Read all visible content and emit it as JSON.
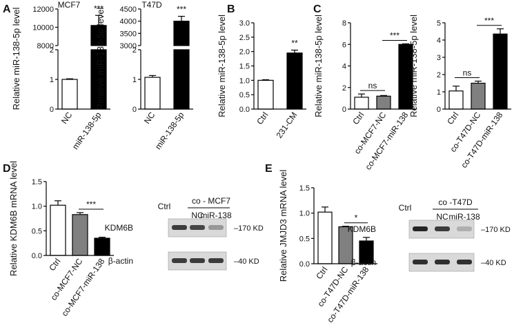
{
  "panels": [
    {
      "id": "A",
      "letter": "A",
      "charts": [
        {
          "type": "bar",
          "title": "MCF7",
          "ylabel": "Relative miR-138-5p level",
          "categories": [
            "NC",
            "miR-138-5p"
          ],
          "values": [
            1.0,
            10200
          ],
          "errors": [
            0.02,
            1100
          ],
          "fills": [
            "#ffffff",
            "#000000"
          ],
          "y_axis": "broken",
          "y_segments": [
            {
              "range": [
                0,
                2
              ],
              "ticks": [
                "0",
                "1",
                "2"
              ]
            },
            {
              "range": [
                8000,
                12000
              ],
              "ticks": [
                "8000",
                "10000",
                "12000"
              ]
            }
          ],
          "significance": [
            {
              "pair": [
                1,
                1
              ],
              "label": "***"
            }
          ]
        },
        {
          "type": "bar",
          "title": "T47D",
          "ylabel": "Relative miR-138-5p level",
          "categories": [
            "NC",
            "miR-138-5p"
          ],
          "values": [
            1.07,
            4000
          ],
          "errors": [
            0.06,
            200
          ],
          "fills": [
            "#ffffff",
            "#000000"
          ],
          "y_axis": "broken",
          "y_segments": [
            {
              "range": [
                0,
                2
              ],
              "ticks": [
                "0",
                "1",
                "2"
              ]
            },
            {
              "range": [
                3000,
                4500
              ],
              "ticks": [
                "3000",
                "3500",
                "4000",
                "4500"
              ]
            }
          ],
          "significance": [
            {
              "pair": [
                1,
                1
              ],
              "label": "***"
            }
          ]
        }
      ]
    },
    {
      "id": "B",
      "letter": "B",
      "charts": [
        {
          "type": "bar",
          "title": "",
          "ylabel": "Relative miR-138-5p level",
          "categories": [
            "Ctrl",
            "231-CM"
          ],
          "values": [
            1.0,
            1.95
          ],
          "errors": [
            0.02,
            0.1
          ],
          "fills": [
            "#ffffff",
            "#000000"
          ],
          "ylim": [
            0,
            3.0
          ],
          "ticks": [
            "0.0",
            "0.5",
            "1.0",
            "1.5",
            "2.0",
            "2.5",
            "3.0"
          ],
          "significance": [
            {
              "pair": [
                1,
                1
              ],
              "label": "**"
            }
          ]
        }
      ]
    },
    {
      "id": "C",
      "letter": "C",
      "charts": [
        {
          "type": "bar",
          "title": "",
          "ylabel": "Relative miR-138-5p level",
          "categories": [
            "Ctrl",
            "co-MCF7-NC",
            "co-MCF7-miR-138"
          ],
          "values": [
            1.1,
            1.2,
            6.0
          ],
          "errors": [
            0.3,
            0.06,
            0.05
          ],
          "fills": [
            "#ffffff",
            "#808080",
            "#000000"
          ],
          "ylim": [
            0,
            8
          ],
          "ticks": [
            "0",
            "2",
            "4",
            "6",
            "8"
          ],
          "significance": [
            {
              "pair": [
                0,
                1
              ],
              "label": "ns"
            },
            {
              "pair": [
                1,
                2
              ],
              "label": "***"
            }
          ]
        },
        {
          "type": "bar",
          "title": "",
          "ylabel": "Relative miR-138-5p level",
          "categories": [
            "Ctrl",
            "co-T47D-NC",
            "co-T47D-miR-138"
          ],
          "values": [
            1.05,
            1.5,
            4.35
          ],
          "errors": [
            0.28,
            0.12,
            0.3
          ],
          "fills": [
            "#ffffff",
            "#808080",
            "#000000"
          ],
          "ylim": [
            0,
            5
          ],
          "ticks": [
            "0",
            "1",
            "2",
            "3",
            "4",
            "5"
          ],
          "significance": [
            {
              "pair": [
                0,
                1
              ],
              "label": "ns"
            },
            {
              "pair": [
                1,
                2
              ],
              "label": "***"
            }
          ]
        }
      ]
    },
    {
      "id": "D",
      "letter": "D",
      "charts": [
        {
          "type": "bar",
          "title": "",
          "ylabel": "Relative KDM6B mRNA level",
          "categories": [
            "Ctrl",
            "co-MCF7-NC",
            "co-MCF7-miR-138"
          ],
          "values": [
            1.02,
            0.83,
            0.35
          ],
          "errors": [
            0.09,
            0.04,
            0.02
          ],
          "fills": [
            "#ffffff",
            "#808080",
            "#000000"
          ],
          "ylim": [
            0,
            1.5
          ],
          "ticks": [
            "0.0",
            "0.5",
            "1.0",
            "1.5"
          ],
          "significance": [
            {
              "pair": [
                1,
                2
              ],
              "label": "***"
            }
          ]
        }
      ],
      "blot": {
        "group_label": "co - MCF7",
        "lane_labels": [
          "Ctrl",
          "NC",
          "miR-138"
        ],
        "band_intensities": [
          {
            "protein": "KDM6B",
            "marker": "170 KD",
            "levels": [
              0.85,
              0.8,
              0.45
            ]
          },
          {
            "protein": "β-actin",
            "marker": "40 KD",
            "levels": [
              0.85,
              0.85,
              0.85
            ]
          }
        ]
      }
    },
    {
      "id": "E",
      "letter": "E",
      "charts": [
        {
          "type": "bar",
          "title": "",
          "ylabel": "Relative JMJD3 mRNA level",
          "categories": [
            "Ctrl",
            "co-T47D-NC",
            "co-T47D-miR-138"
          ],
          "values": [
            1.02,
            0.73,
            0.45
          ],
          "errors": [
            0.1,
            0.01,
            0.07
          ],
          "fills": [
            "#ffffff",
            "#808080",
            "#000000"
          ],
          "ylim": [
            0,
            1.5
          ],
          "ticks": [
            "0.0",
            "0.5",
            "1.0",
            "1.5"
          ],
          "significance": [
            {
              "pair": [
                1,
                2
              ],
              "label": "*"
            }
          ]
        }
      ],
      "blot": {
        "group_label": "co -T47D",
        "lane_labels": [
          "Ctrl",
          "NC",
          "miR-138"
        ],
        "band_intensities": [
          {
            "protein": "KDM6B",
            "marker": "170 KD",
            "levels": [
              0.95,
              0.85,
              0.35
            ]
          },
          {
            "protein": "β-actin",
            "marker": "40 KD",
            "levels": [
              0.9,
              0.9,
              0.9
            ]
          }
        ]
      }
    }
  ]
}
